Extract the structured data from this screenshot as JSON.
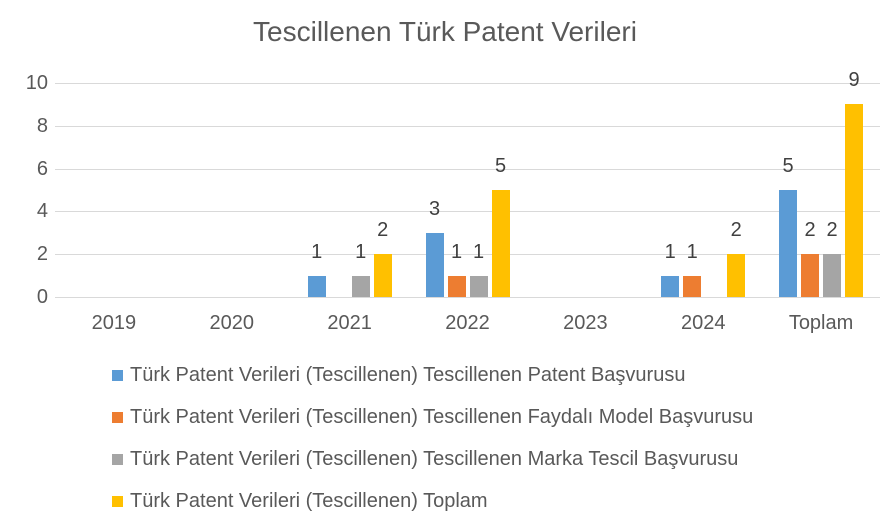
{
  "chart_data": {
    "type": "bar",
    "title": "Tescillenen Türk Patent Verileri",
    "categories": [
      "2019",
      "2020",
      "2021",
      "2022",
      "2023",
      "2024",
      "Toplam"
    ],
    "series": [
      {
        "name": "Türk Patent Verileri (Tescillenen) Tescillenen Patent Başvurusu",
        "color": "#5B9BD5",
        "values": [
          0,
          0,
          1,
          3,
          0,
          1,
          5
        ]
      },
      {
        "name": "Türk Patent Verileri (Tescillenen) Tescillenen Faydalı Model Başvurusu",
        "color": "#ED7D31",
        "values": [
          0,
          0,
          0,
          1,
          0,
          1,
          2
        ]
      },
      {
        "name": "Türk Patent Verileri (Tescillenen) Tescillenen Marka Tescil Başvurusu",
        "color": "#A5A5A5",
        "values": [
          0,
          0,
          1,
          1,
          0,
          0,
          2
        ]
      },
      {
        "name": "Türk Patent Verileri (Tescillenen) Toplam",
        "color": "#FFC000",
        "values": [
          0,
          0,
          2,
          5,
          0,
          2,
          9
        ]
      }
    ],
    "xlabel": "",
    "ylabel": "",
    "ylim": [
      0,
      10
    ],
    "yticks": [
      0,
      2,
      4,
      6,
      8,
      10
    ],
    "grid": true,
    "gridline_color": "#D9D9D9",
    "axis_text_color": "#595959",
    "data_label_color": "#404040",
    "data_labels": true,
    "show_zero_value_labels": false,
    "legend_position": "bottom-left-vertical"
  }
}
